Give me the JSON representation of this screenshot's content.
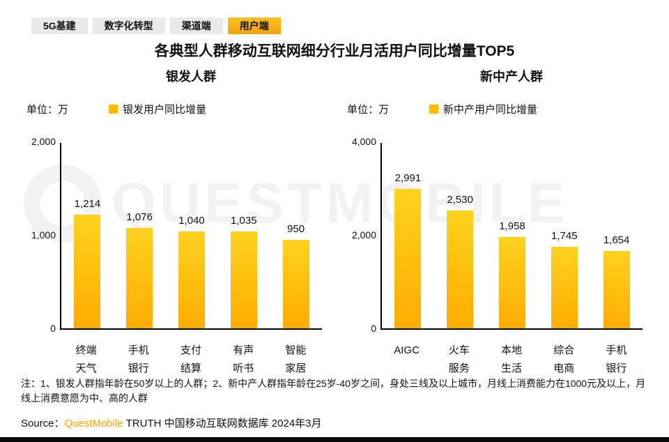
{
  "tabs": [
    {
      "label": "5G基建",
      "active": false
    },
    {
      "label": "数字化转型",
      "active": false
    },
    {
      "label": "渠道端",
      "active": false
    },
    {
      "label": "用户端",
      "active": true
    }
  ],
  "title": "各典型人群移动互联网细分行业月活用户同比增量TOP5",
  "watermark": "QUESTMOBILE",
  "chart_data": [
    {
      "type": "bar",
      "title": "银发人群",
      "unit_label": "单位：万",
      "legend": "银发用户同比增量",
      "categories": [
        "终端天气",
        "手机银行",
        "支付结算",
        "有声听书",
        "智能家居"
      ],
      "categories_lines": [
        [
          "终端",
          "天气"
        ],
        [
          "手机",
          "银行"
        ],
        [
          "支付",
          "结算"
        ],
        [
          "有声",
          "听书"
        ],
        [
          "智能",
          "家居"
        ]
      ],
      "values": [
        1214,
        1076,
        1040,
        1035,
        950
      ],
      "value_labels": [
        "1,214",
        "1,076",
        "1,040",
        "1,035",
        "950"
      ],
      "ylim": [
        0,
        2000
      ],
      "yticks": [
        0,
        1000,
        2000
      ],
      "ytick_labels": [
        "0",
        "1,000",
        "2,000"
      ],
      "bar_color": "#FFB900",
      "grid": false,
      "legend_position": "top"
    },
    {
      "type": "bar",
      "title": "新中产人群",
      "unit_label": "单位：万",
      "legend": "新中产用户同比增量",
      "categories": [
        "AIGC",
        "火车服务",
        "本地生活",
        "综合电商",
        "手机银行"
      ],
      "categories_lines": [
        [
          "AIGC"
        ],
        [
          "火车",
          "服务"
        ],
        [
          "本地",
          "生活"
        ],
        [
          "综合",
          "电商"
        ],
        [
          "手机",
          "银行"
        ]
      ],
      "values": [
        2991,
        2530,
        1958,
        1745,
        1654
      ],
      "value_labels": [
        "2,991",
        "2,530",
        "1,958",
        "1,745",
        "1,654"
      ],
      "ylim": [
        0,
        4000
      ],
      "yticks": [
        0,
        2000,
        4000
      ],
      "ytick_labels": [
        "0",
        "2,000",
        "4,000"
      ],
      "bar_color": "#FFB900",
      "grid": false,
      "legend_position": "top"
    }
  ],
  "note": "注：1、银发人群指年龄在50岁以上的人群；2、新中产人群指年龄在25岁-40岁之间，身处三线及以上城市，月线上消费能力在1000元及以上，月线上消费意愿为中、高的人群",
  "source": {
    "prefix": "Source：",
    "brand": "QuestMobile",
    "suffix": " TRUTH 中国移动互联网数据库 2024年3月"
  }
}
